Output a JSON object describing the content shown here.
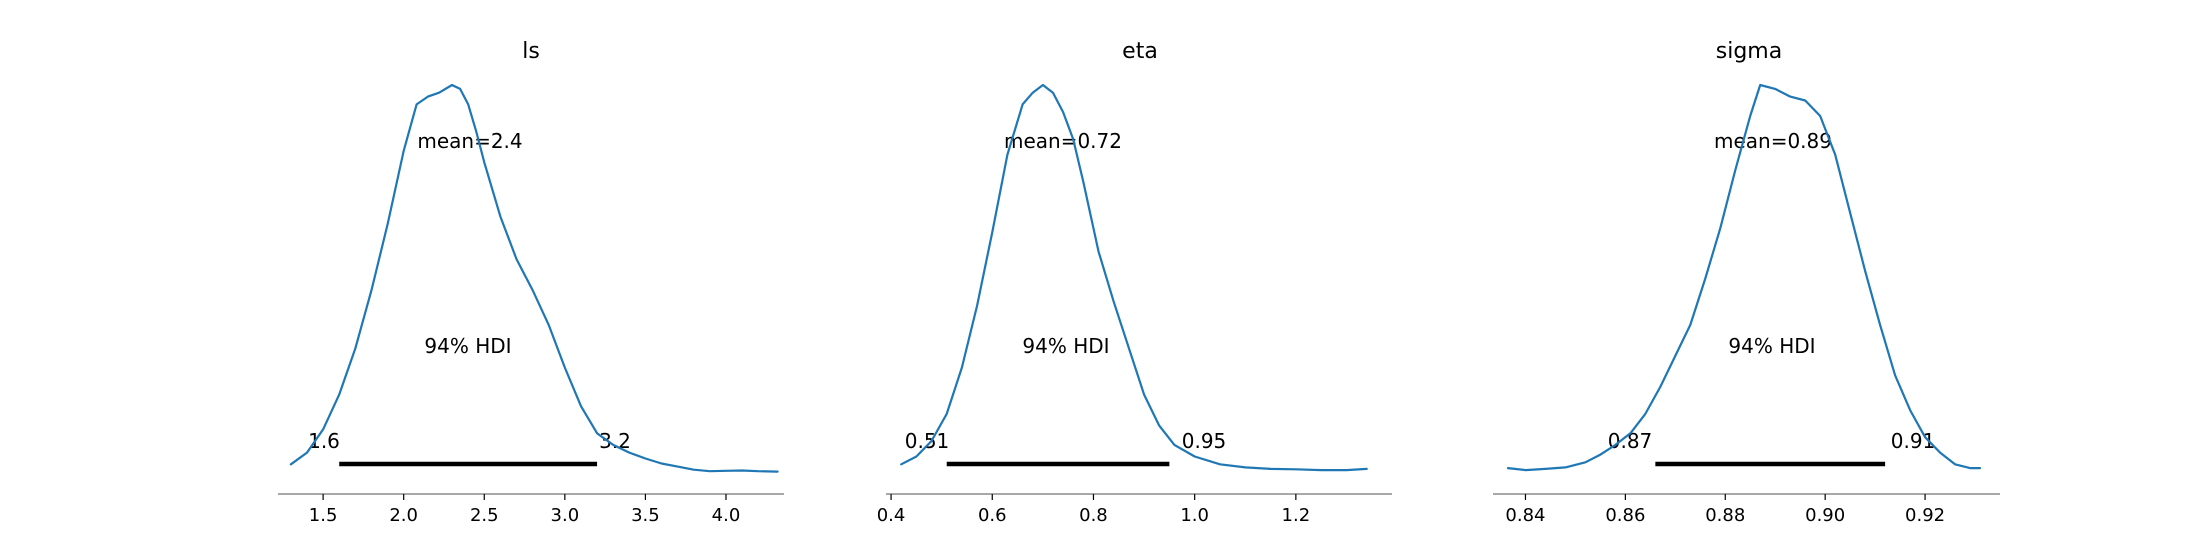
{
  "colors": {
    "curve": "#1f77b4",
    "hdi_bar": "#000000",
    "axis": "#8c8c8c",
    "text": "#000000"
  },
  "chart_data": [
    {
      "type": "line",
      "title": "ls",
      "mean_label": "mean=2.4",
      "hdi_label": "94% HDI",
      "hdi": {
        "low": 1.6,
        "high": 3.2,
        "low_label": "1.6",
        "high_label": "3.2"
      },
      "xlim": [
        1.22,
        4.36
      ],
      "ticks": [
        1.5,
        2.0,
        2.5,
        3.0,
        3.5,
        4.0
      ],
      "tick_labels": [
        "1.5",
        "2.0",
        "2.5",
        "3.0",
        "3.5",
        "4.0"
      ],
      "x": [
        1.3,
        1.4,
        1.5,
        1.6,
        1.7,
        1.8,
        1.9,
        2.0,
        2.08,
        2.15,
        2.22,
        2.3,
        2.35,
        2.4,
        2.45,
        2.5,
        2.6,
        2.7,
        2.8,
        2.9,
        3.0,
        3.1,
        3.2,
        3.3,
        3.4,
        3.5,
        3.6,
        3.7,
        3.8,
        3.9,
        4.0,
        4.1,
        4.2,
        4.32
      ],
      "y": [
        0.02,
        0.05,
        0.11,
        0.2,
        0.32,
        0.47,
        0.64,
        0.83,
        0.95,
        0.97,
        0.98,
        1.0,
        0.99,
        0.95,
        0.88,
        0.8,
        0.66,
        0.55,
        0.47,
        0.38,
        0.27,
        0.17,
        0.1,
        0.07,
        0.05,
        0.035,
        0.022,
        0.014,
        0.006,
        0.002,
        0.003,
        0.004,
        0.002,
        0.001
      ]
    },
    {
      "type": "line",
      "title": "eta",
      "mean_label": "mean=0.72",
      "hdi_label": "94% HDI",
      "hdi": {
        "low": 0.51,
        "high": 0.95,
        "low_label": "0.51",
        "high_label": "0.95"
      },
      "xlim": [
        0.39,
        1.39
      ],
      "ticks": [
        0.4,
        0.6,
        0.8,
        1.0,
        1.2
      ],
      "tick_labels": [
        "0.4",
        "0.6",
        "0.8",
        "1.0",
        "1.2"
      ],
      "x": [
        0.42,
        0.45,
        0.48,
        0.51,
        0.54,
        0.57,
        0.6,
        0.63,
        0.66,
        0.68,
        0.7,
        0.72,
        0.74,
        0.76,
        0.78,
        0.81,
        0.84,
        0.87,
        0.9,
        0.93,
        0.96,
        1.0,
        1.05,
        1.1,
        1.15,
        1.2,
        1.25,
        1.3,
        1.34
      ],
      "y": [
        0.02,
        0.04,
        0.08,
        0.15,
        0.27,
        0.43,
        0.62,
        0.82,
        0.95,
        0.98,
        1.0,
        0.98,
        0.93,
        0.86,
        0.75,
        0.57,
        0.44,
        0.32,
        0.2,
        0.12,
        0.07,
        0.04,
        0.02,
        0.012,
        0.008,
        0.007,
        0.005,
        0.005,
        0.008
      ]
    },
    {
      "type": "line",
      "title": "sigma",
      "mean_label": "mean=0.89",
      "hdi_label": "94% HDI",
      "hdi": {
        "low": 0.866,
        "high": 0.912,
        "low_label": "0.87",
        "high_label": "0.91"
      },
      "xlim": [
        0.8335,
        0.935
      ],
      "ticks": [
        0.84,
        0.86,
        0.88,
        0.9,
        0.92
      ],
      "tick_labels": [
        "0.84",
        "0.86",
        "0.88",
        "0.90",
        "0.92"
      ],
      "x": [
        0.8365,
        0.84,
        0.844,
        0.848,
        0.852,
        0.855,
        0.858,
        0.861,
        0.864,
        0.867,
        0.87,
        0.873,
        0.876,
        0.879,
        0.882,
        0.885,
        0.887,
        0.89,
        0.893,
        0.896,
        0.899,
        0.902,
        0.905,
        0.908,
        0.911,
        0.914,
        0.917,
        0.92,
        0.923,
        0.926,
        0.929,
        0.931
      ],
      "y": [
        0.01,
        0.005,
        0.008,
        0.012,
        0.025,
        0.045,
        0.07,
        0.1,
        0.15,
        0.22,
        0.3,
        0.38,
        0.5,
        0.63,
        0.78,
        0.92,
        1.0,
        0.99,
        0.97,
        0.96,
        0.92,
        0.82,
        0.67,
        0.52,
        0.38,
        0.25,
        0.16,
        0.09,
        0.05,
        0.02,
        0.01,
        0.01
      ]
    }
  ]
}
